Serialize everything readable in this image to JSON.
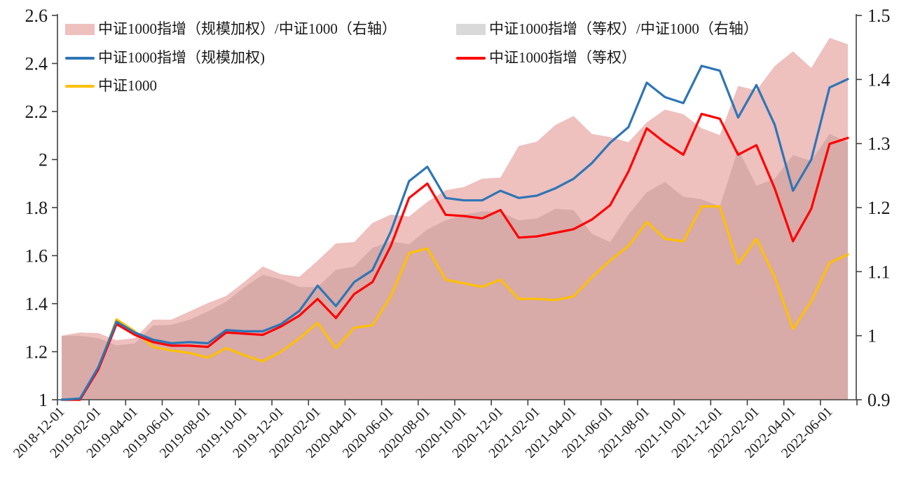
{
  "chart_data": {
    "type": "line",
    "description": "Dual-axis combo: 3 cumulative NAV lines on left axis, 2 ratio areas on right axis",
    "x": [
      "2018-12",
      "2019-01",
      "2019-02",
      "2019-03",
      "2019-04",
      "2019-05",
      "2019-06",
      "2019-07",
      "2019-08",
      "2019-09",
      "2019-10",
      "2019-11",
      "2019-12",
      "2020-01",
      "2020-02",
      "2020-03",
      "2020-04",
      "2020-05",
      "2020-06",
      "2020-07",
      "2020-08",
      "2020-09",
      "2020-10",
      "2020-11",
      "2020-12",
      "2021-01",
      "2021-02",
      "2021-03",
      "2021-04",
      "2021-05",
      "2021-06",
      "2021-07",
      "2021-08",
      "2021-09",
      "2021-10",
      "2021-11",
      "2021-12",
      "2022-01",
      "2022-02",
      "2022-03",
      "2022-04",
      "2022-05",
      "2022-06",
      "2022-07"
    ],
    "x_tick_labels": [
      "2018-12-01",
      "2019-02-01",
      "2019-04-01",
      "2019-06-01",
      "2019-08-01",
      "2019-10-01",
      "2019-12-01",
      "2020-02-01",
      "2020-04-01",
      "2020-06-01",
      "2020-08-01",
      "2020-10-01",
      "2020-12-01",
      "2021-02-01",
      "2021-04-01",
      "2021-06-01",
      "2021-08-01",
      "2021-10-01",
      "2021-12-01",
      "2022-02-01",
      "2022-04-01",
      "2022-06-01"
    ],
    "x_label_interval": 2,
    "grid": false,
    "legend_position": "top-left two columns",
    "left_axis": {
      "min": 1,
      "max": 2.6,
      "ticks": [
        1,
        1.2,
        1.4,
        1.6,
        1.8,
        2,
        2.2,
        2.4,
        2.6
      ]
    },
    "right_axis": {
      "min": 0.9,
      "max": 1.5,
      "ticks": [
        0.9,
        1,
        1.1,
        1.2,
        1.3,
        1.4,
        1.5
      ]
    },
    "series": [
      {
        "name": "中证1000指增（规模加权）/中证1000（右轴）",
        "kind": "area",
        "axis": "right",
        "color": "#d76a65",
        "opacity": 0.42,
        "values": [
          1.0,
          1.005,
          1.004,
          0.993,
          0.996,
          1.025,
          1.025,
          1.038,
          1.051,
          1.062,
          1.084,
          1.108,
          1.096,
          1.092,
          1.117,
          1.144,
          1.146,
          1.176,
          1.189,
          1.186,
          1.209,
          1.227,
          1.232,
          1.245,
          1.247,
          1.296,
          1.303,
          1.329,
          1.343,
          1.315,
          1.31,
          1.302,
          1.333,
          1.353,
          1.346,
          1.324,
          1.313,
          1.39,
          1.383,
          1.421,
          1.444,
          1.418,
          1.465,
          1.455
        ]
      },
      {
        "name": "中证1000指增（等权）/中证1000（右轴）",
        "kind": "area",
        "axis": "right",
        "color": "#d9d9d9",
        "opacity": 1,
        "values": [
          1.0,
          1.0,
          0.996,
          0.985,
          0.988,
          1.016,
          1.017,
          1.025,
          1.038,
          1.053,
          1.076,
          1.095,
          1.088,
          1.076,
          1.076,
          1.103,
          1.108,
          1.137,
          1.147,
          1.143,
          1.166,
          1.18,
          1.189,
          1.194,
          1.193,
          1.18,
          1.183,
          1.198,
          1.196,
          1.159,
          1.146,
          1.189,
          1.224,
          1.24,
          1.217,
          1.213,
          1.202,
          1.291,
          1.234,
          1.245,
          1.282,
          1.273,
          1.315,
          1.302
        ]
      },
      {
        "name": "中证1000指增（规模加权)",
        "kind": "line",
        "axis": "left",
        "color": "#2e75b6",
        "width": 3.2,
        "values": [
          1.0,
          1.005,
          1.135,
          1.325,
          1.28,
          1.25,
          1.235,
          1.24,
          1.235,
          1.29,
          1.285,
          1.285,
          1.315,
          1.37,
          1.475,
          1.39,
          1.49,
          1.54,
          1.7,
          1.91,
          1.97,
          1.84,
          1.83,
          1.83,
          1.87,
          1.84,
          1.85,
          1.88,
          1.92,
          1.985,
          2.07,
          2.135,
          2.32,
          2.26,
          2.235,
          2.39,
          2.37,
          2.175,
          2.31,
          2.145,
          1.87,
          2.0,
          2.3,
          2.335
        ]
      },
      {
        "name": "中证1000指增（等权）",
        "kind": "line",
        "axis": "left",
        "color": "#ff0000",
        "width": 3.2,
        "values": [
          1.0,
          1.0,
          1.125,
          1.315,
          1.27,
          1.24,
          1.225,
          1.225,
          1.22,
          1.28,
          1.275,
          1.27,
          1.305,
          1.35,
          1.42,
          1.34,
          1.44,
          1.49,
          1.64,
          1.84,
          1.9,
          1.77,
          1.765,
          1.755,
          1.79,
          1.675,
          1.68,
          1.695,
          1.71,
          1.75,
          1.81,
          1.95,
          2.13,
          2.07,
          2.02,
          2.19,
          2.17,
          2.02,
          2.06,
          1.88,
          1.66,
          1.795,
          2.065,
          2.09
        ]
      },
      {
        "name": "中证1000",
        "kind": "line",
        "axis": "left",
        "color": "#ffc000",
        "width": 3.2,
        "values": [
          1.0,
          1.0,
          1.13,
          1.335,
          1.285,
          1.22,
          1.205,
          1.195,
          1.175,
          1.215,
          1.185,
          1.16,
          1.2,
          1.255,
          1.32,
          1.215,
          1.3,
          1.31,
          1.43,
          1.61,
          1.63,
          1.5,
          1.485,
          1.47,
          1.5,
          1.42,
          1.42,
          1.415,
          1.43,
          1.51,
          1.58,
          1.64,
          1.74,
          1.67,
          1.66,
          1.805,
          1.805,
          1.565,
          1.67,
          1.51,
          1.295,
          1.41,
          1.57,
          1.605
        ]
      }
    ]
  },
  "legend": {
    "items": [
      {
        "label": "中证1000指增（规模加权）/中证1000（右轴）",
        "swatch": "area",
        "color": "#d76a65",
        "opacity": 0.42
      },
      {
        "label": "中证1000指增（等权）/中证1000（右轴）",
        "swatch": "area",
        "color": "#d9d9d9",
        "opacity": 1
      },
      {
        "label": "中证1000指增（规模加权)",
        "swatch": "line",
        "color": "#2e75b6",
        "opacity": 1
      },
      {
        "label": "中证1000指增（等权）",
        "swatch": "line",
        "color": "#ff0000",
        "opacity": 1
      },
      {
        "label": "中证1000",
        "swatch": "line",
        "color": "#ffc000",
        "opacity": 1
      }
    ]
  },
  "colors": {
    "axis": "#404040",
    "text": "#1a1a1a",
    "background": "#ffffff"
  }
}
